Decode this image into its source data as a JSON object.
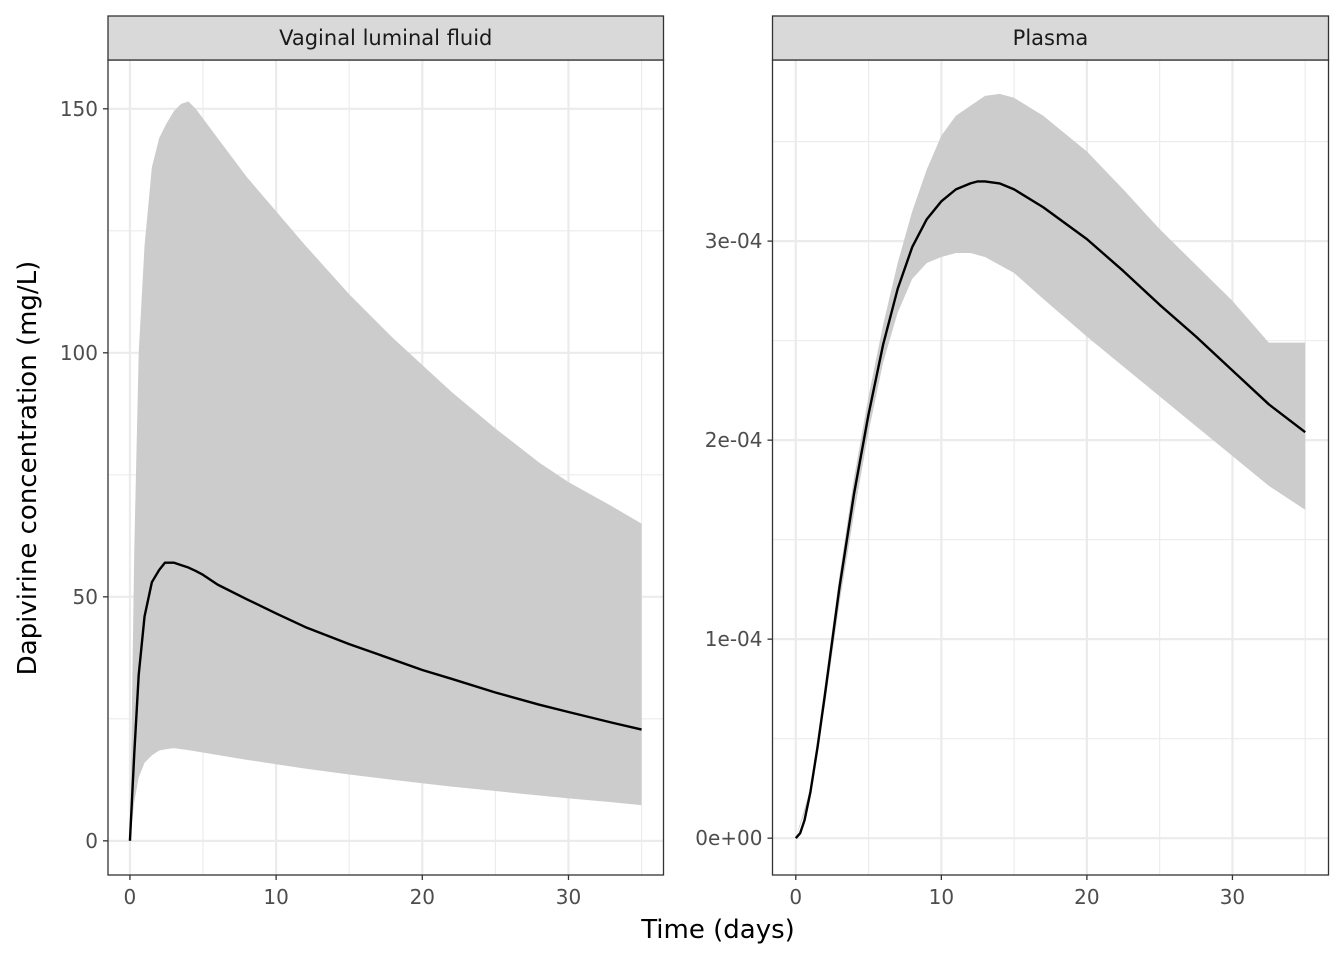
{
  "figure": {
    "xlabel": "Time (days)",
    "ylabel": "Dapivirine concentration (mg/L)"
  },
  "chart_data": [
    {
      "type": "line",
      "panel": "Vaginal luminal fluid",
      "xlabel": "Time (days)",
      "ylabel": "Dapivirine concentration (mg/L)",
      "xlim": [
        -1.5,
        36.5
      ],
      "ylim": [
        -7,
        160
      ],
      "x_ticks": [
        0,
        10,
        20,
        30
      ],
      "x_tick_labels": [
        "0",
        "10",
        "20",
        "30"
      ],
      "y_ticks": [
        0,
        50,
        100,
        150
      ],
      "y_tick_labels": [
        "0",
        "50",
        "100",
        "150"
      ],
      "grid": true,
      "series": [
        {
          "role": "median",
          "color": "#000000",
          "x": [
            0,
            0.3,
            0.6,
            1,
            1.5,
            2,
            2.4,
            3,
            3.5,
            4,
            4.5,
            5,
            6,
            8,
            10,
            12,
            15,
            17,
            20,
            22,
            25,
            28,
            30,
            33,
            35
          ],
          "y": [
            0,
            18,
            34,
            46,
            53,
            55.5,
            57,
            57,
            56.5,
            56,
            55.3,
            54.5,
            52.5,
            49.5,
            46.6,
            43.8,
            40.3,
            38.2,
            35,
            33.2,
            30.4,
            27.9,
            26.4,
            24.2,
            22.8
          ]
        },
        {
          "role": "upper",
          "color": "#cccccc",
          "x": [
            0,
            0.3,
            0.6,
            1,
            1.5,
            2,
            2.5,
            3,
            3.5,
            4,
            4.5,
            5,
            6,
            8,
            10,
            12,
            15,
            18,
            20,
            22,
            25,
            28,
            30,
            33,
            35
          ],
          "y": [
            0,
            60,
            100,
            122,
            138,
            144,
            147,
            149.5,
            151,
            151.5,
            150,
            148,
            144,
            136,
            129,
            122,
            112,
            103,
            97.5,
            92,
            84.5,
            77.5,
            73.5,
            68.5,
            65
          ]
        },
        {
          "role": "lower",
          "color": "#cccccc",
          "x": [
            0,
            0.3,
            0.6,
            1,
            1.5,
            2,
            2.5,
            3,
            3.5,
            4,
            6,
            8,
            10,
            12,
            15,
            18,
            20,
            22,
            25,
            28,
            30,
            33,
            35
          ],
          "y": [
            0,
            8,
            13,
            16,
            17.5,
            18.5,
            18.8,
            19,
            18.8,
            18.6,
            17.6,
            16.6,
            15.7,
            14.8,
            13.6,
            12.5,
            11.8,
            11.1,
            10.2,
            9.3,
            8.7,
            7.9,
            7.3
          ]
        }
      ]
    },
    {
      "type": "line",
      "panel": "Plasma",
      "xlabel": "Time (days)",
      "ylabel": "Dapivirine concentration (mg/L)",
      "xlim": [
        -1.6,
        36.6
      ],
      "ylim": [
        -1.85e-05,
        0.000391
      ],
      "x_ticks": [
        0,
        10,
        20,
        30
      ],
      "x_tick_labels": [
        "0",
        "10",
        "20",
        "30"
      ],
      "y_ticks": [
        0,
        0.0001,
        0.0002,
        0.0003
      ],
      "y_tick_labels": [
        "0e+00",
        "1e-04",
        "2e-04",
        "3e-04"
      ],
      "grid": true,
      "series": [
        {
          "role": "median",
          "color": "#000000",
          "x": [
            0,
            0.3,
            0.6,
            1,
            1.5,
            2,
            3,
            4,
            5,
            6,
            7,
            8,
            9,
            10,
            11,
            12,
            12.5,
            13,
            14,
            15,
            17,
            20,
            22.5,
            25,
            27.5,
            30,
            32.5,
            35
          ],
          "y": [
            0,
            2.5e-06,
            9e-06,
            2.3e-05,
            4.6e-05,
            7.2e-05,
            0.000126,
            0.000173,
            0.000213,
            0.000248,
            0.000276,
            0.000297,
            0.000311,
            0.00032,
            0.000326,
            0.000329,
            0.00033,
            0.00033,
            0.000329,
            0.000326,
            0.000317,
            0.000301,
            0.000285,
            0.000268,
            0.000252,
            0.000235,
            0.000218,
            0.000204
          ]
        },
        {
          "role": "upper",
          "color": "#cccccc",
          "x": [
            0,
            1,
            2,
            3,
            4,
            5,
            6,
            7,
            8,
            9,
            10,
            11,
            12,
            13,
            14,
            15,
            17,
            20,
            22.5,
            25,
            27.5,
            30,
            32.5,
            35
          ],
          "y": [
            0,
            2.5e-05,
            7.7e-05,
            0.000132,
            0.000181,
            0.000222,
            0.000258,
            0.000289,
            0.000315,
            0.000336,
            0.000353,
            0.000363,
            0.000368,
            0.000373,
            0.000374,
            0.000372,
            0.000363,
            0.000345,
            0.000326,
            0.000306,
            0.000288,
            0.00027,
            0.000249,
            0.000249
          ]
        },
        {
          "role": "lower",
          "color": "#cccccc",
          "x": [
            0,
            1,
            2,
            3,
            4,
            5,
            6,
            7,
            8,
            9,
            10,
            11,
            12,
            13,
            14,
            15,
            17,
            20,
            22.5,
            25,
            27.5,
            30,
            32.5,
            35
          ],
          "y": [
            0,
            2.1e-05,
            6.7e-05,
            0.000118,
            0.000163,
            0.000204,
            0.000239,
            0.000264,
            0.000281,
            0.000289,
            0.000292,
            0.000294,
            0.000294,
            0.000292,
            0.000288,
            0.000284,
            0.000271,
            0.000252,
            0.000237,
            0.000222,
            0.000207,
            0.000192,
            0.000177,
            0.000165
          ]
        }
      ]
    }
  ]
}
